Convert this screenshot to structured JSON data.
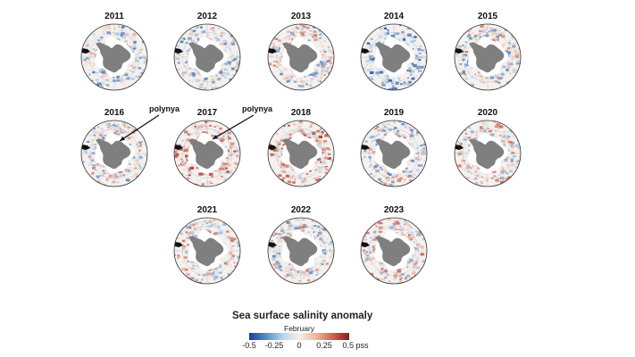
{
  "figure": {
    "years": [
      "2011",
      "2012",
      "2013",
      "2014",
      "2015",
      "2016",
      "2017",
      "2018",
      "2019",
      "2020",
      "2021",
      "2022",
      "2023"
    ],
    "maps": [
      {
        "year": "2011",
        "anomaly_tone": "mixed-blue"
      },
      {
        "year": "2012",
        "anomaly_tone": "mixed-blue"
      },
      {
        "year": "2013",
        "anomaly_tone": "mixed"
      },
      {
        "year": "2014",
        "anomaly_tone": "blue"
      },
      {
        "year": "2015",
        "anomaly_tone": "mixed"
      },
      {
        "year": "2016",
        "anomaly_tone": "mixed"
      },
      {
        "year": "2017",
        "anomaly_tone": "red"
      },
      {
        "year": "2018",
        "anomaly_tone": "red"
      },
      {
        "year": "2019",
        "anomaly_tone": "mixed"
      },
      {
        "year": "2020",
        "anomaly_tone": "mixed-red"
      },
      {
        "year": "2021",
        "anomaly_tone": "mixed-red"
      },
      {
        "year": "2022",
        "anomaly_tone": "mixed"
      },
      {
        "year": "2023",
        "anomaly_tone": "mixed-red"
      }
    ],
    "annotations": [
      {
        "text": "polynya",
        "year": "2016"
      },
      {
        "text": "polynya",
        "year": "2017"
      }
    ],
    "colors": {
      "land": "#7f7f7f",
      "ice": "#ffffff",
      "ocean_neutral": "#f4f1ef",
      "negative": "#2b5fa8",
      "positive": "#c84a3c"
    }
  },
  "colorbar": {
    "title": "Sea surface salinity anomaly",
    "month": "February",
    "ticks": [
      "-0.5",
      "-0.25",
      "0",
      "0.25",
      "0.5 pss"
    ],
    "range": [
      -0.5,
      0.5
    ],
    "unit": "pss"
  }
}
